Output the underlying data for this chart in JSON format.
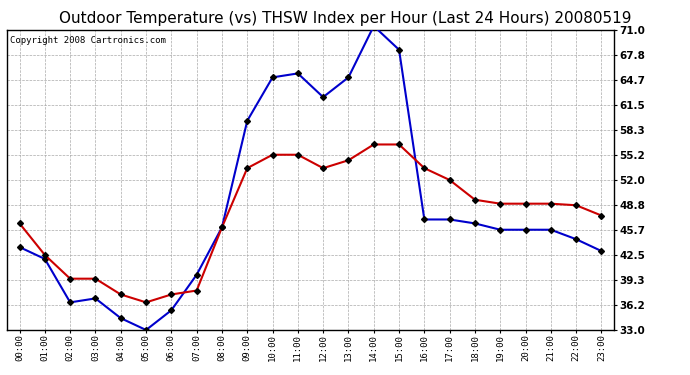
{
  "title": "Outdoor Temperature (vs) THSW Index per Hour (Last 24 Hours) 20080519",
  "copyright": "Copyright 2008 Cartronics.com",
  "hours": [
    "00:00",
    "01:00",
    "02:00",
    "03:00",
    "04:00",
    "05:00",
    "06:00",
    "07:00",
    "08:00",
    "09:00",
    "10:00",
    "11:00",
    "12:00",
    "13:00",
    "14:00",
    "15:00",
    "16:00",
    "17:00",
    "18:00",
    "19:00",
    "20:00",
    "21:00",
    "22:00",
    "23:00"
  ],
  "temp": [
    43.5,
    42.0,
    36.5,
    37.0,
    34.5,
    33.0,
    35.5,
    40.0,
    46.0,
    59.5,
    65.0,
    65.5,
    62.5,
    65.0,
    71.5,
    68.5,
    47.0,
    47.0,
    46.5,
    45.7,
    45.7,
    45.7,
    44.5,
    43.0
  ],
  "thsw": [
    46.5,
    42.5,
    39.5,
    39.5,
    37.5,
    36.5,
    37.5,
    38.0,
    46.0,
    53.5,
    55.2,
    55.2,
    53.5,
    54.5,
    56.5,
    56.5,
    53.5,
    52.0,
    49.5,
    49.0,
    49.0,
    49.0,
    48.8,
    47.5
  ],
  "temp_color": "#0000CC",
  "thsw_color": "#CC0000",
  "bg_color": "#FFFFFF",
  "grid_color": "#AAAAAA",
  "ylim": [
    33.0,
    71.0
  ],
  "yticks": [
    33.0,
    36.2,
    39.3,
    42.5,
    45.7,
    48.8,
    52.0,
    55.2,
    58.3,
    61.5,
    64.7,
    67.8,
    71.0
  ],
  "title_fontsize": 11,
  "copyright_fontsize": 6.5,
  "marker_size": 3,
  "line_width": 1.5
}
